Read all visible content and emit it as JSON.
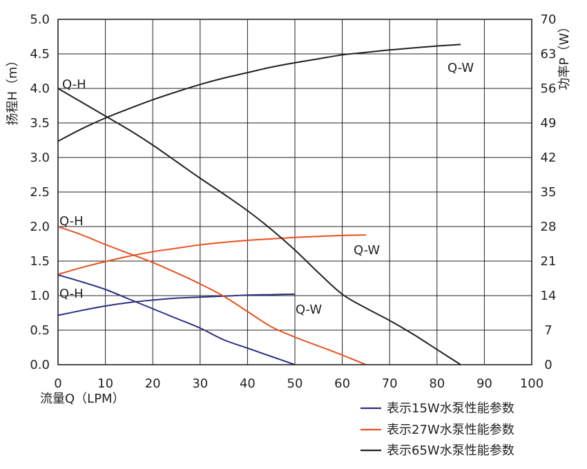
{
  "chart_data": {
    "type": "line",
    "xlabel": "流量Q（LPM）",
    "ylabel_left": "扬程H（m）",
    "ylabel_right": "功率P（W）",
    "x_ticks": [
      "0",
      "10",
      "20",
      "30",
      "40",
      "50",
      "60",
      "70",
      "80",
      "90",
      "100"
    ],
    "y_left_ticks": [
      "0.0",
      "0.5",
      "1.0",
      "1.5",
      "2.0",
      "2.5",
      "3.0",
      "3.5",
      "4.0",
      "4.5",
      "5.0"
    ],
    "y_right_ticks": [
      "0",
      "7",
      "14",
      "21",
      "28",
      "35",
      "42",
      "49",
      "56",
      "63",
      "70"
    ],
    "xlim": [
      0,
      100
    ],
    "ylim_left": [
      0,
      5
    ],
    "ylim_right": [
      0,
      70
    ],
    "grid": true,
    "legend_position": "bottom-right",
    "pumps": [
      {
        "name": "表示15W水泵性能参数",
        "color": "#2b2e83",
        "head": {
          "label": "Q-H",
          "x": [
            0,
            5,
            10,
            15,
            20,
            25,
            30,
            35,
            40,
            45,
            50
          ],
          "y": [
            1.3,
            1.2,
            1.09,
            0.95,
            0.81,
            0.67,
            0.53,
            0.36,
            0.24,
            0.12,
            0.0
          ]
        },
        "power": {
          "label": "Q-W",
          "x": [
            0,
            5,
            10,
            15,
            20,
            25,
            30,
            35,
            40,
            45,
            50
          ],
          "y": [
            10.0,
            11.0,
            11.9,
            12.6,
            13.1,
            13.5,
            13.7,
            13.9,
            14.1,
            14.2,
            14.3
          ]
        }
      },
      {
        "name": "表示27W水泵性能参数",
        "color": "#e8501d",
        "head": {
          "label": "Q-H",
          "x": [
            0,
            5,
            10,
            15,
            20,
            25,
            30,
            35,
            40,
            45,
            50,
            55,
            60,
            65
          ],
          "y": [
            2.0,
            1.88,
            1.74,
            1.61,
            1.48,
            1.33,
            1.17,
            0.99,
            0.77,
            0.55,
            0.4,
            0.27,
            0.14,
            0.0
          ]
        },
        "power": {
          "label": "Q-W",
          "x": [
            0,
            5,
            10,
            15,
            20,
            25,
            30,
            35,
            40,
            45,
            50,
            55,
            60,
            65
          ],
          "y": [
            18.3,
            19.7,
            20.9,
            22.0,
            22.9,
            23.6,
            24.3,
            24.8,
            25.2,
            25.5,
            25.8,
            26.0,
            26.2,
            26.3
          ]
        }
      },
      {
        "name": "表示65W水泵性能参数",
        "color": "#231f20",
        "head": {
          "label": "Q-H",
          "x": [
            0,
            5,
            10,
            15,
            20,
            25,
            30,
            35,
            40,
            45,
            50,
            55,
            60,
            65,
            70,
            75,
            80,
            85
          ],
          "y": [
            4.0,
            3.8,
            3.6,
            3.4,
            3.18,
            2.94,
            2.7,
            2.47,
            2.23,
            1.96,
            1.66,
            1.33,
            1.02,
            0.82,
            0.64,
            0.44,
            0.22,
            0.0
          ]
        },
        "power": {
          "label": "Q-W",
          "x": [
            0,
            5,
            10,
            15,
            20,
            25,
            30,
            35,
            40,
            45,
            50,
            55,
            60,
            65,
            70,
            75,
            80,
            85
          ],
          "y": [
            45.3,
            47.8,
            50.0,
            51.9,
            53.7,
            55.3,
            56.8,
            58.1,
            59.2,
            60.3,
            61.2,
            62.0,
            62.8,
            63.3,
            63.8,
            64.2,
            64.6,
            64.9
          ]
        }
      }
    ]
  }
}
